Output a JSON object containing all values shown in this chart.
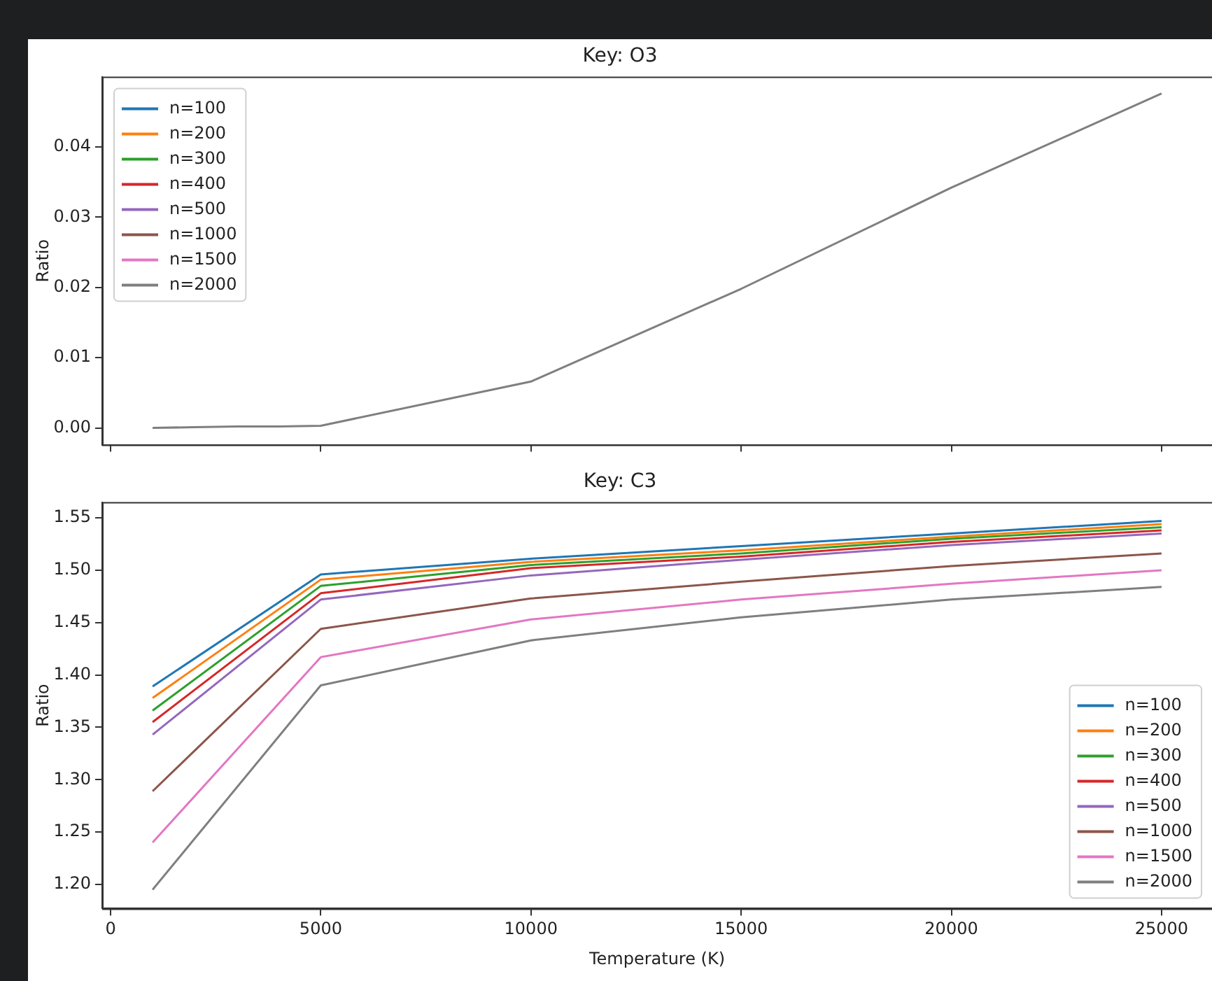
{
  "chart_data": [
    {
      "type": "line",
      "title": "Key: O3",
      "ylabel": "Ratio",
      "x": [
        1000,
        2000,
        3000,
        4000,
        5000,
        10000,
        15000,
        20000,
        25000
      ],
      "xlim": [
        -200,
        26200
      ],
      "xticks": [
        0,
        5000,
        10000,
        15000,
        20000,
        25000
      ],
      "ylim": [
        -0.0024,
        0.05
      ],
      "yticks": [
        {
          "value": 0,
          "label": "0.00"
        },
        {
          "value": 0.01,
          "label": "0.01"
        },
        {
          "value": 0.02,
          "label": "0.02"
        },
        {
          "value": 0.03,
          "label": "0.03"
        },
        {
          "value": 0.04,
          "label": "0.04"
        }
      ],
      "tick_labels": "y",
      "legend": "top left",
      "series": [
        {
          "name": "n=100",
          "color": "#1f77b4",
          "values": [
            null,
            null,
            null,
            null,
            null,
            null,
            null,
            null,
            null
          ]
        },
        {
          "name": "n=200",
          "color": "#ff7f0e",
          "values": [
            null,
            null,
            null,
            null,
            null,
            null,
            null,
            null,
            null
          ]
        },
        {
          "name": "n=300",
          "color": "#2ca02c",
          "values": [
            null,
            null,
            null,
            null,
            null,
            null,
            null,
            null,
            null
          ]
        },
        {
          "name": "n=400",
          "color": "#d62728",
          "values": [
            null,
            null,
            null,
            null,
            null,
            null,
            null,
            null,
            null
          ]
        },
        {
          "name": "n=500",
          "color": "#9467bd",
          "values": [
            null,
            null,
            null,
            null,
            null,
            null,
            null,
            null,
            null
          ]
        },
        {
          "name": "n=1000",
          "color": "#8c564b",
          "values": [
            null,
            null,
            null,
            null,
            null,
            null,
            null,
            null,
            null
          ]
        },
        {
          "name": "n=1500",
          "color": "#e377c2",
          "values": [
            null,
            null,
            null,
            null,
            null,
            null,
            null,
            null,
            null
          ]
        },
        {
          "name": "n=2000",
          "color": "#7f7f7f",
          "values": [
            0,
            0.0001,
            0.0002,
            0.0002,
            0.0003,
            0.0066,
            0.0198,
            0.0342,
            0.0476
          ]
        }
      ]
    },
    {
      "type": "line",
      "title": "Key: C3",
      "xlabel": "Temperature (K)",
      "ylabel": "Ratio",
      "x": [
        1000,
        5000,
        10000,
        15000,
        20000,
        25000
      ],
      "xlim": [
        -200,
        26200
      ],
      "xticks": [
        0,
        5000,
        10000,
        15000,
        20000,
        25000
      ],
      "ylim": [
        1.177,
        1.565
      ],
      "yticks": [
        {
          "value": 1.2,
          "label": "1.20"
        },
        {
          "value": 1.25,
          "label": "1.25"
        },
        {
          "value": 1.3,
          "label": "1.30"
        },
        {
          "value": 1.35,
          "label": "1.35"
        },
        {
          "value": 1.4,
          "label": "1.40"
        },
        {
          "value": 1.45,
          "label": "1.45"
        },
        {
          "value": 1.5,
          "label": "1.50"
        },
        {
          "value": 1.55,
          "label": "1.55"
        }
      ],
      "legend": "bottom right",
      "series": [
        {
          "name": "n=100",
          "color": "#1f77b4",
          "values": [
            1.389,
            1.496,
            1.511,
            1.523,
            1.535,
            1.547
          ]
        },
        {
          "name": "n=200",
          "color": "#ff7f0e",
          "values": [
            1.378,
            1.491,
            1.508,
            1.519,
            1.532,
            1.544
          ]
        },
        {
          "name": "n=300",
          "color": "#2ca02c",
          "values": [
            1.366,
            1.485,
            1.505,
            1.516,
            1.53,
            1.541
          ]
        },
        {
          "name": "n=400",
          "color": "#d62728",
          "values": [
            1.355,
            1.478,
            1.502,
            1.513,
            1.527,
            1.538
          ]
        },
        {
          "name": "n=500",
          "color": "#9467bd",
          "values": [
            1.343,
            1.472,
            1.495,
            1.51,
            1.524,
            1.535
          ]
        },
        {
          "name": "n=1000",
          "color": "#8c564b",
          "values": [
            1.289,
            1.444,
            1.473,
            1.489,
            1.504,
            1.516
          ]
        },
        {
          "name": "n=1500",
          "color": "#e377c2",
          "values": [
            1.24,
            1.417,
            1.453,
            1.472,
            1.487,
            1.5
          ]
        },
        {
          "name": "n=2000",
          "color": "#7f7f7f",
          "values": [
            1.195,
            1.39,
            1.433,
            1.455,
            1.472,
            1.484
          ]
        }
      ]
    }
  ]
}
